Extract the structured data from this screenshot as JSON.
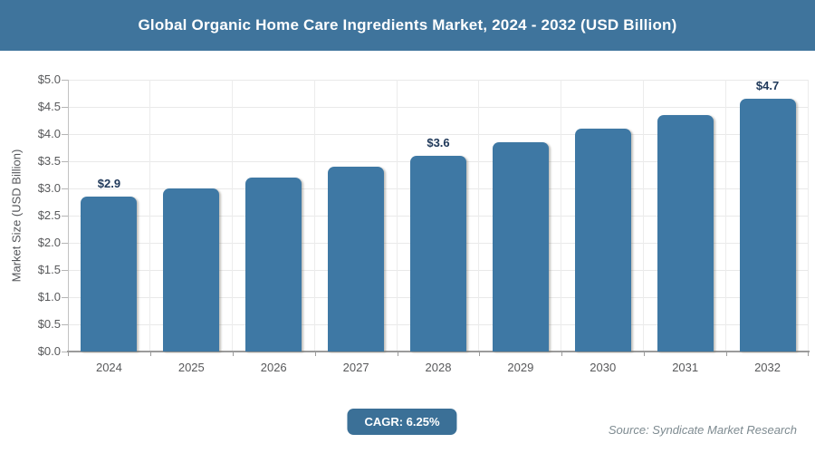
{
  "header": {
    "title": "Global Organic Home Care Ingredients Market, 2024 - 2032 (USD Billion)"
  },
  "chart_data": {
    "type": "bar",
    "title": "Global Organic Home Care Ingredients Market, 2024 - 2032 (USD Billion)",
    "categories": [
      "2024",
      "2025",
      "2026",
      "2027",
      "2028",
      "2029",
      "2030",
      "2031",
      "2032"
    ],
    "values": [
      2.85,
      3.0,
      3.2,
      3.4,
      3.6,
      3.85,
      4.1,
      4.35,
      4.65
    ],
    "bar_labels": [
      "$2.9",
      "",
      "",
      "",
      "$3.6",
      "",
      "",
      "",
      "$4.7"
    ],
    "xlabel": "",
    "ylabel": "Market Size (USD Billion)",
    "ylim": [
      0,
      5
    ],
    "ytick_step": 0.5,
    "ytick_labels": [
      "$5.0",
      "$4.5",
      "$4.0",
      "$3.5",
      "$3.0",
      "$2.5",
      "$2.0",
      "$1.5",
      "$1.0",
      "$0.5",
      "$0.0"
    ],
    "grid": true,
    "legend": false,
    "bar_color": "#3e78a4",
    "bar_label_color": "#20395a"
  },
  "footer": {
    "cagr_label": "CAGR: 6.25%",
    "source": "Source: Syndicate Market Research"
  },
  "colors": {
    "header_background": "#3f749c",
    "header_text": "#ffffff",
    "bar_fill": "#3e78a4",
    "badge_background": "#3b7097",
    "badge_text": "#ffffff",
    "axis_text": "#58595b",
    "data_label_text": "#20395a",
    "gridline": "#e9e9e9",
    "source_text": "#7e8b91"
  }
}
